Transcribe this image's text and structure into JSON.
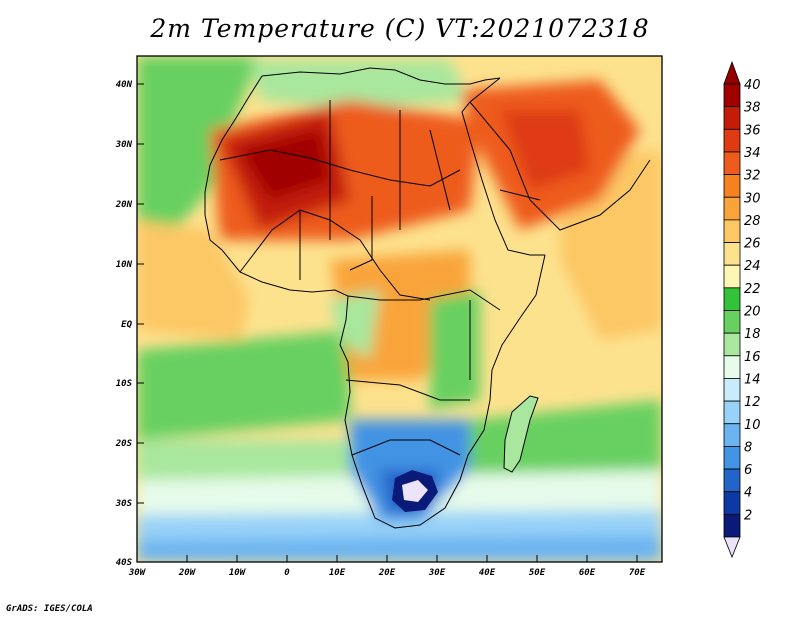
{
  "title": "2m Temperature (C) VT:2021072318",
  "credit": "GrADS: IGES/COLA",
  "map": {
    "lat_ticks": [
      "40N",
      "30N",
      "20N",
      "10N",
      "EQ",
      "10S",
      "20S",
      "30S",
      "40S"
    ],
    "lon_ticks": [
      "30W",
      "20W",
      "10W",
      "0",
      "10E",
      "20E",
      "30E",
      "40E",
      "50E",
      "60E",
      "70E"
    ]
  },
  "colorbar": {
    "unit": "C",
    "labels": [
      "40",
      "38",
      "36",
      "34",
      "32",
      "30",
      "28",
      "26",
      "24",
      "22",
      "20",
      "18",
      "16",
      "14",
      "12",
      "10",
      "8",
      "6",
      "4",
      "2"
    ],
    "colors_top_to_bottom": [
      "#a00000",
      "#c31d0a",
      "#de3b12",
      "#ee5b1e",
      "#f5821f",
      "#f9a43b",
      "#fcc765",
      "#fde28e",
      "#fdf6b5",
      "#33c23a",
      "#68d060",
      "#a8e79d",
      "#e6fbe9",
      "#c8ecfc",
      "#98d2f8",
      "#6cb4f0",
      "#4393e4",
      "#2264c9",
      "#0c3aa5",
      "#0a1a78"
    ],
    "over_color": "#960000",
    "under_color": "#ece4fa"
  }
}
